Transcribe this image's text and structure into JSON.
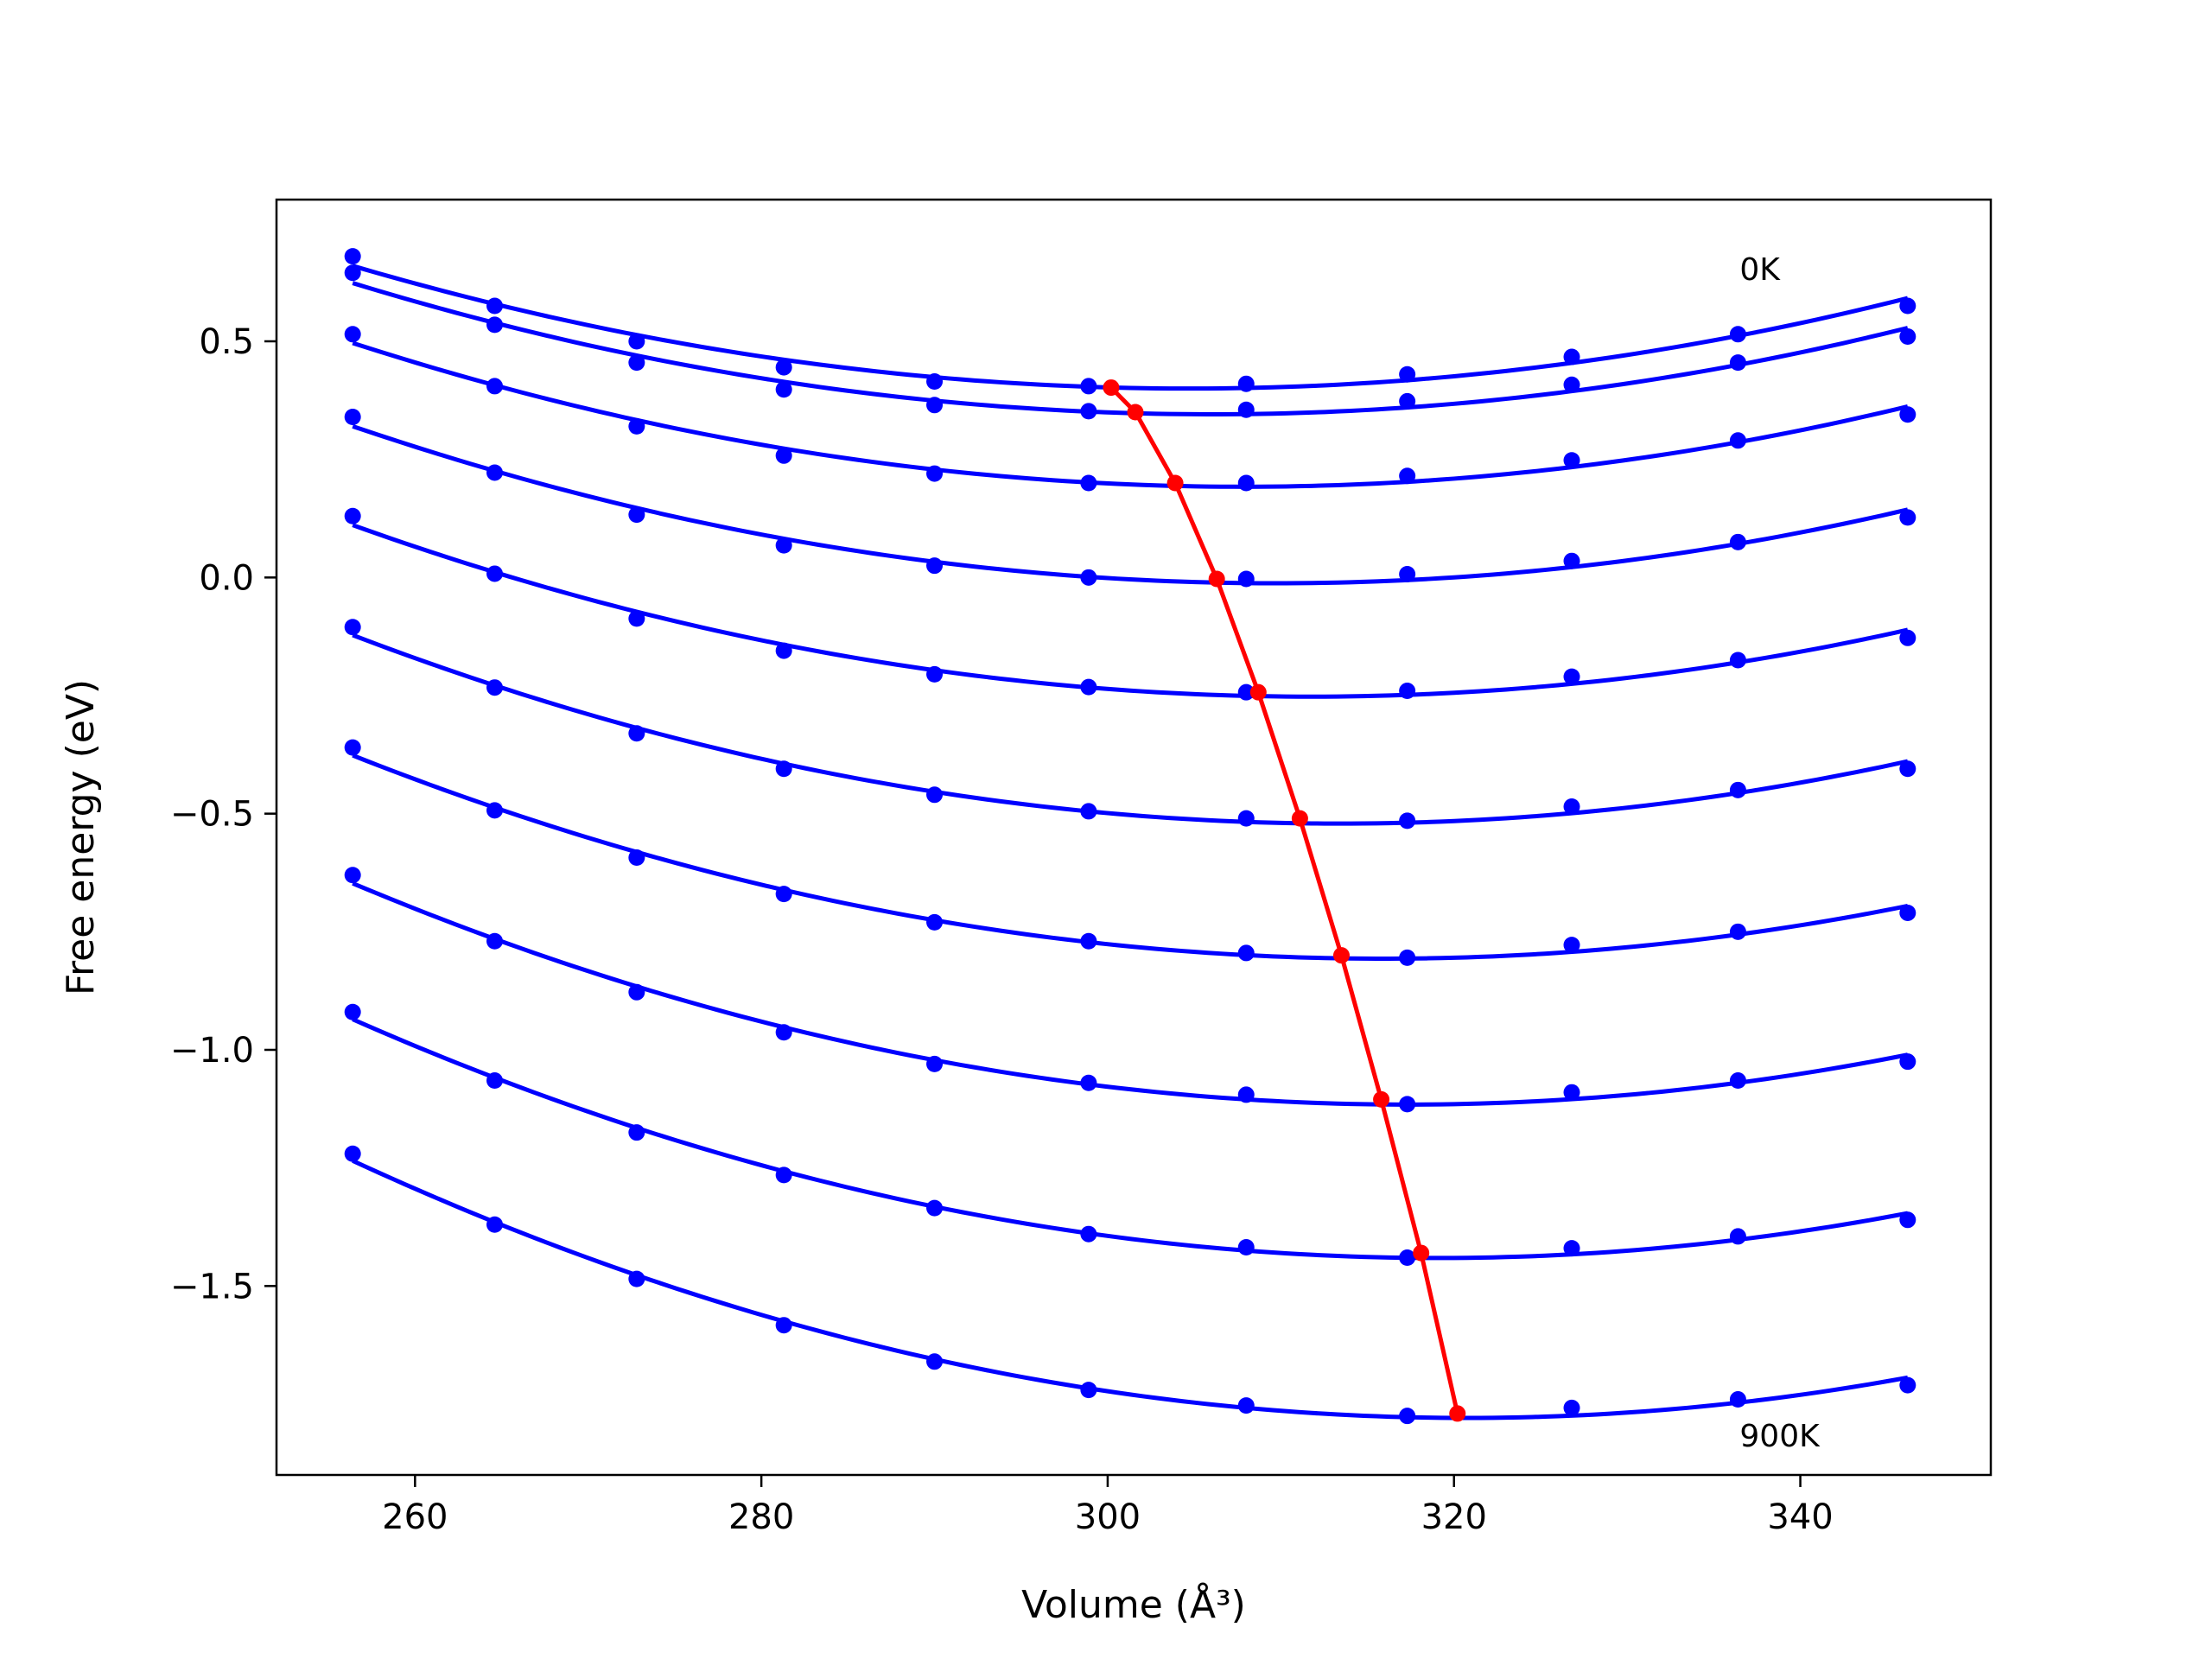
{
  "chart_data": {
    "type": "line",
    "title": "",
    "xlabel": "Volume (Å³)",
    "ylabel": "Free energy (eV)",
    "xlim": [
      252,
      351
    ],
    "ylim": [
      -1.9,
      0.8
    ],
    "xticks": [
      260,
      280,
      300,
      320,
      340
    ],
    "xtick_labels": [
      "260",
      "280",
      "300",
      "320",
      "340"
    ],
    "yticks": [
      0.5,
      0.0,
      -0.5,
      -1.0,
      -1.5
    ],
    "ytick_labels": [
      "0.5",
      "0.0",
      "−0.5",
      "−1.0",
      "−1.5"
    ],
    "grid": false,
    "legend": "none",
    "annotations": [
      {
        "text": "0K",
        "x": 336.5,
        "y": 0.63
      },
      {
        "text": "900K",
        "x": 336.5,
        "y": -1.84
      }
    ],
    "x": [
      256.4,
      264.6,
      272.8,
      281.3,
      290.0,
      298.9,
      308.0,
      317.3,
      326.8,
      336.4,
      346.2
    ],
    "series": [
      {
        "values": [
          0.68,
          0.575,
          0.5,
          0.445,
          0.415,
          0.405,
          0.41,
          0.43,
          0.467,
          0.515,
          0.575
        ]
      },
      {
        "values": [
          0.645,
          0.535,
          0.455,
          0.398,
          0.365,
          0.352,
          0.355,
          0.373,
          0.408,
          0.455,
          0.51
        ]
      },
      {
        "values": [
          0.515,
          0.405,
          0.32,
          0.258,
          0.22,
          0.2,
          0.2,
          0.215,
          0.248,
          0.29,
          0.345
        ]
      },
      {
        "values": [
          0.34,
          0.222,
          0.133,
          0.068,
          0.025,
          0.0,
          -0.003,
          0.007,
          0.035,
          0.075,
          0.127
        ]
      },
      {
        "values": [
          0.13,
          0.008,
          -0.087,
          -0.155,
          -0.205,
          -0.232,
          -0.243,
          -0.24,
          -0.21,
          -0.175,
          -0.128
        ]
      },
      {
        "values": [
          -0.105,
          -0.233,
          -0.33,
          -0.405,
          -0.46,
          -0.495,
          -0.51,
          -0.515,
          -0.485,
          -0.45,
          -0.405
        ]
      },
      {
        "values": [
          -0.36,
          -0.493,
          -0.593,
          -0.67,
          -0.73,
          -0.77,
          -0.795,
          -0.805,
          -0.778,
          -0.75,
          -0.71
        ]
      },
      {
        "values": [
          -0.63,
          -0.77,
          -0.878,
          -0.963,
          -1.03,
          -1.07,
          -1.095,
          -1.115,
          -1.09,
          -1.065,
          -1.025
        ]
      },
      {
        "values": [
          -0.92,
          -1.065,
          -1.175,
          -1.265,
          -1.335,
          -1.39,
          -1.418,
          -1.44,
          -1.42,
          -1.395,
          -1.36
        ]
      },
      {
        "values": [
          -1.22,
          -1.37,
          -1.485,
          -1.583,
          -1.66,
          -1.72,
          -1.753,
          -1.775,
          -1.758,
          -1.74,
          -1.71
        ]
      }
    ],
    "curves_color": "#0000ff",
    "minimum_line": {
      "color": "#ff0000",
      "x": [
        300.2,
        301.6,
        303.9,
        306.3,
        308.7,
        311.1,
        313.5,
        315.8,
        318.1,
        320.2
      ],
      "y": [
        0.402,
        0.35,
        0.2,
        -0.003,
        -0.243,
        -0.51,
        -0.8,
        -1.105,
        -1.43,
        -1.77
      ]
    }
  }
}
